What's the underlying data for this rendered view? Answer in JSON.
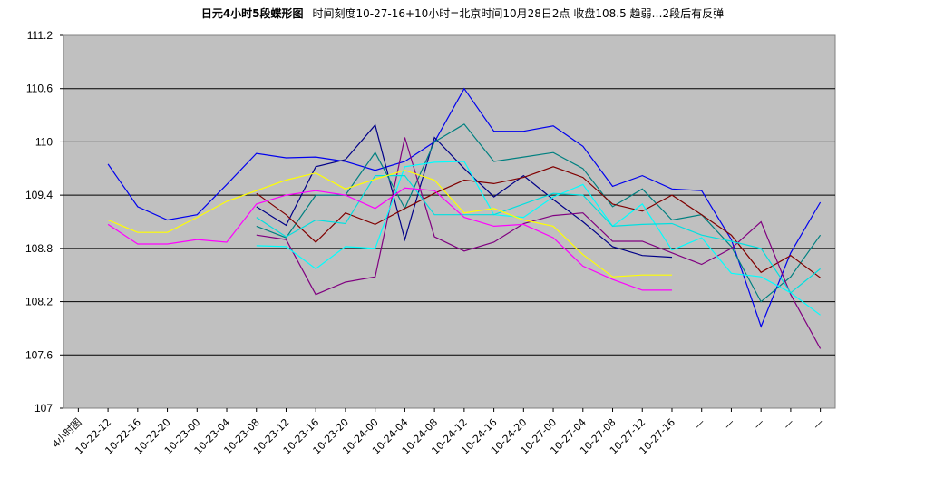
{
  "chart_data": {
    "type": "line",
    "title": "日元4小时5段蝶形图",
    "subtitle": "时间刻度10-27-16+10小时=北京时间10月28日2点  收盘108.5 趋弱…2段后有反弹",
    "ylim": [
      107,
      111.2
    ],
    "yticks": [
      "107",
      "107.6",
      "108.2",
      "108.8",
      "109.4",
      "110",
      "110.6",
      "111.2"
    ],
    "grid": true,
    "categories": [
      "4小时图",
      "10-22-12",
      "10-22-16",
      "10-22-20",
      "10-23-00",
      "10-23-04",
      "10-23-08",
      "10-23-12",
      "10-23-16",
      "10-23-20",
      "10-24-00",
      "10-24-04",
      "10-24-08",
      "10-24-12",
      "10-24-16",
      "10-24-20",
      "10-27-00",
      "10-27-04",
      "10-27-08",
      "10-27-12",
      "10-27-16",
      "—",
      "—",
      "—",
      "—",
      "—"
    ],
    "series": [
      {
        "color": "#0000ee",
        "values": [
          null,
          109.75,
          109.27,
          109.12,
          109.18,
          109.52,
          109.87,
          109.82,
          109.83,
          109.78,
          109.68,
          109.78,
          110.0,
          110.6,
          110.12,
          110.12,
          110.18,
          109.95,
          109.5,
          109.62,
          109.47,
          109.45,
          108.9,
          107.92,
          108.75,
          109.32
        ]
      },
      {
        "color": "#000088",
        "values": [
          null,
          null,
          null,
          null,
          null,
          null,
          109.27,
          109.06,
          109.72,
          109.8,
          110.19,
          108.9,
          110.05,
          109.7,
          109.38,
          109.62,
          109.35,
          109.1,
          108.82,
          108.72,
          108.7,
          null,
          null,
          null,
          null,
          null
        ]
      },
      {
        "color": "#008080",
        "values": [
          null,
          null,
          null,
          null,
          null,
          null,
          109.05,
          108.92,
          109.4,
          109.4,
          109.88,
          109.25,
          110.0,
          110.2,
          109.78,
          109.83,
          109.88,
          109.7,
          109.27,
          109.47,
          109.12,
          109.18,
          108.82,
          108.2,
          108.48,
          108.95
        ]
      },
      {
        "color": "#800000",
        "values": [
          null,
          null,
          null,
          null,
          null,
          null,
          109.42,
          109.18,
          108.87,
          109.2,
          109.07,
          109.25,
          109.42,
          109.57,
          109.53,
          109.6,
          109.72,
          109.6,
          109.3,
          109.22,
          109.4,
          109.18,
          108.95,
          108.53,
          108.72,
          108.47
        ]
      },
      {
        "color": "#800080",
        "values": [
          null,
          null,
          null,
          null,
          null,
          null,
          108.95,
          108.9,
          108.28,
          108.42,
          108.48,
          110.05,
          108.93,
          108.77,
          108.87,
          109.08,
          109.17,
          109.2,
          108.88,
          108.88,
          108.75,
          108.62,
          108.8,
          109.1,
          108.28,
          107.67
        ]
      },
      {
        "color": "#00ffff",
        "values": [
          null,
          null,
          null,
          null,
          null,
          null,
          108.83,
          108.82,
          108.57,
          108.82,
          108.8,
          109.72,
          109.77,
          109.78,
          109.18,
          109.15,
          109.38,
          109.52,
          109.05,
          109.3,
          108.78,
          108.92,
          108.52,
          108.48,
          108.3,
          108.05
        ]
      },
      {
        "color": "#00e0e0",
        "values": [
          null,
          null,
          null,
          null,
          null,
          null,
          109.15,
          108.93,
          109.12,
          109.08,
          109.62,
          109.62,
          109.18,
          109.18,
          109.18,
          109.3,
          109.42,
          109.4,
          109.05,
          109.07,
          109.08,
          108.95,
          108.88,
          108.8,
          108.3,
          108.57
        ]
      },
      {
        "color": "#ffff00",
        "values": [
          null,
          109.12,
          108.98,
          108.98,
          109.15,
          109.33,
          109.45,
          109.57,
          109.65,
          109.47,
          109.58,
          109.68,
          109.57,
          109.2,
          109.25,
          109.12,
          109.05,
          108.73,
          108.48,
          108.5,
          108.5,
          null,
          null,
          null,
          null,
          null
        ]
      },
      {
        "color": "#ff00ff",
        "values": [
          null,
          109.07,
          108.85,
          108.85,
          108.9,
          108.87,
          109.3,
          109.4,
          109.45,
          109.4,
          109.25,
          109.48,
          109.45,
          109.15,
          109.05,
          109.07,
          108.92,
          108.6,
          108.45,
          108.33,
          108.33,
          null,
          null,
          null,
          null,
          null
        ]
      }
    ]
  }
}
